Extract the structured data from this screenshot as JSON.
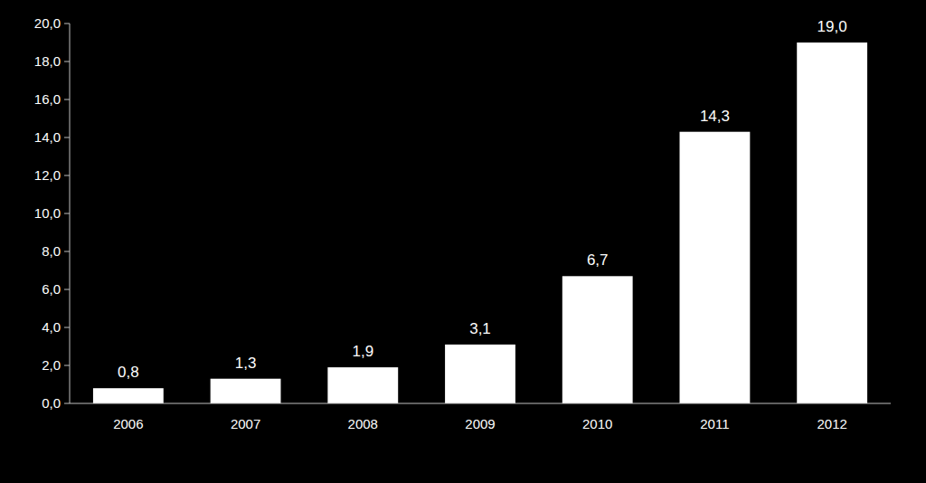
{
  "chart_data": {
    "type": "bar",
    "categories": [
      "2006",
      "2007",
      "2008",
      "2009",
      "2010",
      "2011",
      "2012"
    ],
    "values": [
      0.8,
      1.3,
      1.9,
      3.1,
      6.7,
      14.3,
      19.0
    ],
    "value_labels": [
      "0,8",
      "1,3",
      "1,9",
      "3,1",
      "6,7",
      "14,3",
      "19,0"
    ],
    "color": "#ffffff",
    "ylim": [
      0,
      20
    ],
    "yticks": [
      {
        "value": 0,
        "label": "0,0"
      },
      {
        "value": 2,
        "label": "2,0"
      },
      {
        "value": 4,
        "label": "4,0"
      },
      {
        "value": 6,
        "label": "6,0"
      },
      {
        "value": 8,
        "label": "8,0"
      },
      {
        "value": 10,
        "label": "10,0"
      },
      {
        "value": 12,
        "label": "12,0"
      },
      {
        "value": 14,
        "label": "14,0"
      },
      {
        "value": 16,
        "label": "16,0"
      },
      {
        "value": 18,
        "label": "18,0"
      },
      {
        "value": 20,
        "label": "20,0"
      }
    ],
    "data_labels": true,
    "grid": false
  }
}
